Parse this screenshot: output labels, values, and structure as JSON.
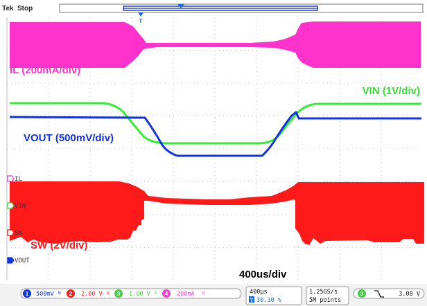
{
  "header": {
    "brand": "Tek",
    "status": "Stop",
    "trigger_marker": "T"
  },
  "traces": {
    "il": {
      "label": "IL (200mA/div)",
      "marker": "IL",
      "color": "#ff33cc"
    },
    "vin": {
      "label": "VIN (1V/div)",
      "marker": "VIN",
      "color": "#33ee33"
    },
    "vout": {
      "label": "VOUT (500mV/div)",
      "marker": "VOUT",
      "color": "#1133dd"
    },
    "sw": {
      "label": "SW (2V/div)",
      "marker": "SW",
      "color": "#ff1a1a"
    }
  },
  "timebase_annotation": "400us/div",
  "status_bar": {
    "ch1": {
      "num": "1",
      "scale": "500mV"
    },
    "ch2": {
      "num": "2",
      "scale": "2.00 V"
    },
    "ch3": {
      "num": "3",
      "scale": "1.00 V"
    },
    "ch4": {
      "num": "4",
      "scale": "200mA"
    },
    "horizontal": {
      "scale": "400µs",
      "position": "30.10 %"
    },
    "acquisition": {
      "rate": "1.25GS/s",
      "length": "5M points"
    },
    "trigger": {
      "channel": "3",
      "slope_icon": "falling-edge-icon",
      "level": "3.08 V"
    }
  }
}
